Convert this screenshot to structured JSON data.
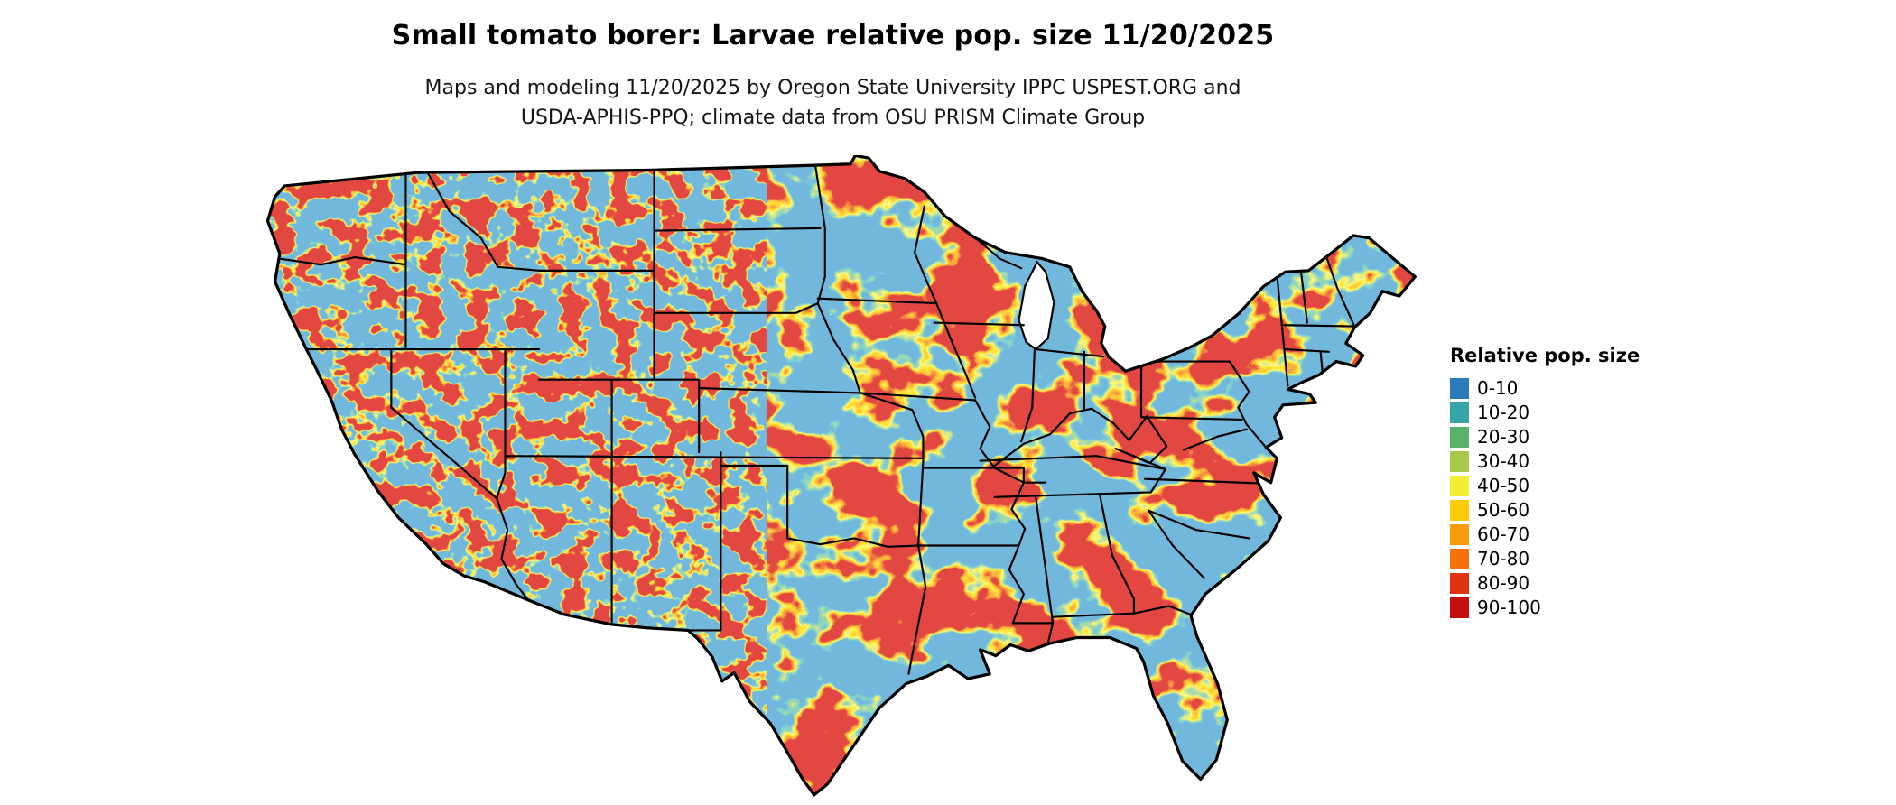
{
  "page": {
    "background_color": "#ffffff"
  },
  "header": {
    "title": "Small tomato borer: Larvae relative pop. size 11/20/2025",
    "subtitle_line1": "Maps and modeling 11/20/2025 by Oregon State University IPPC USPEST.ORG and",
    "subtitle_line2": "USDA-APHIS-PPQ; climate data from OSU PRISM Climate Group"
  },
  "map": {
    "type": "choropleth-raster",
    "region": "Conterminous United States with state boundaries",
    "metric": "Relative pop. size",
    "low_value_color": "#2b7bba",
    "mid_value_color": "#f2ee35",
    "high_value_color": "#c3100e",
    "boundary_color": "#000000"
  },
  "legend": {
    "title": "Relative pop. size",
    "items": [
      {
        "label": "0-10",
        "color": "#2b7bba"
      },
      {
        "label": "10-20",
        "color": "#37a5a5"
      },
      {
        "label": "20-30",
        "color": "#58b168"
      },
      {
        "label": "30-40",
        "color": "#a8c84c"
      },
      {
        "label": "40-50",
        "color": "#f2ee35"
      },
      {
        "label": "50-60",
        "color": "#fecb0a"
      },
      {
        "label": "60-70",
        "color": "#fa9b0c"
      },
      {
        "label": "70-80",
        "color": "#f4710c"
      },
      {
        "label": "80-90",
        "color": "#e0340e"
      },
      {
        "label": "90-100",
        "color": "#c3100e"
      }
    ]
  }
}
